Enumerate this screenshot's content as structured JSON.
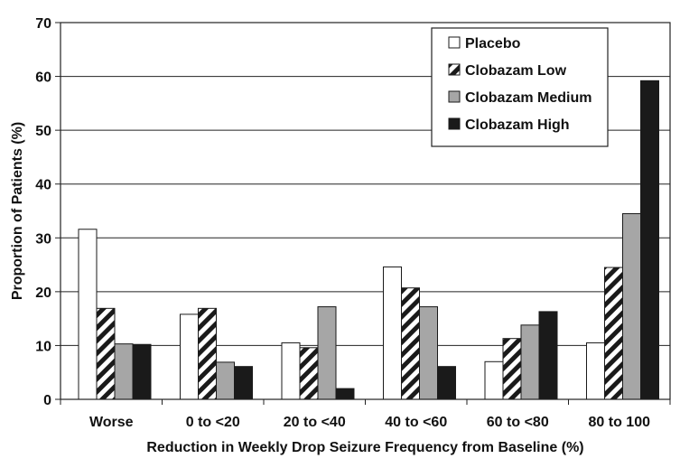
{
  "chart_data": {
    "type": "bar",
    "title": "",
    "xlabel": "Reduction in Weekly Drop Seizure Frequency from Baseline (%)",
    "ylabel": "Proportion of Patients (%)",
    "ylim": [
      0,
      70
    ],
    "yticks": [
      0,
      10,
      20,
      30,
      40,
      50,
      60,
      70
    ],
    "categories": [
      "Worse",
      "0 to <20",
      "20 to <40",
      "40 to <60",
      "60 to <80",
      "80 to 100"
    ],
    "grid": "horizontal",
    "legend_position": "top-right",
    "series": [
      {
        "name": "Placebo",
        "values": [
          31.6,
          15.8,
          10.5,
          24.6,
          7.0,
          10.5
        ],
        "fill": "white"
      },
      {
        "name": "Clobazam Low",
        "values": [
          16.9,
          16.9,
          9.6,
          20.7,
          11.3,
          24.5
        ],
        "fill": "hatch"
      },
      {
        "name": "Clobazam Medium",
        "values": [
          10.3,
          6.9,
          17.2,
          17.2,
          13.8,
          34.5
        ],
        "fill": "#a6a6a6"
      },
      {
        "name": "Clobazam High",
        "values": [
          10.2,
          6.1,
          2.0,
          6.1,
          16.3,
          59.2
        ],
        "fill": "#1a1a1a"
      }
    ]
  }
}
